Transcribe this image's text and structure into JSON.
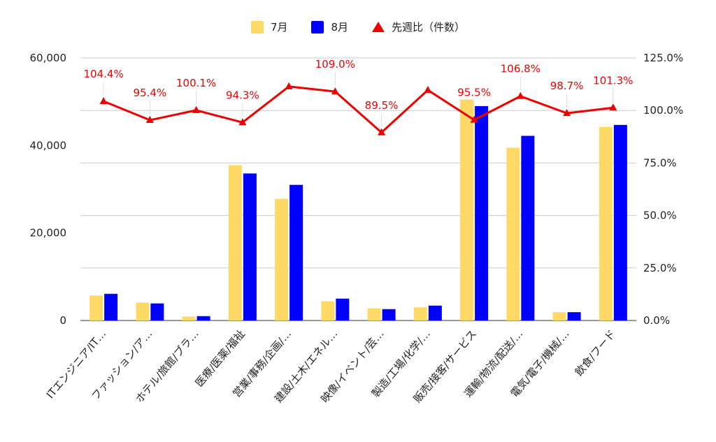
{
  "chart_data": {
    "type": "bar",
    "categories": [
      "ITエンジニア/IT…",
      "ファッション/ア…",
      "ホテル/旅館/ブラ…",
      "医療/医薬/福祉",
      "営業/事務/企画/…",
      "建設/土木/エネル…",
      "映像/イベント/芸…",
      "製造/工場/化学/…",
      "販売/接客/サービス",
      "運輸/物流/配送/…",
      "電気/電子/機械/…",
      "飲食/フード"
    ],
    "series": [
      {
        "name": "7月",
        "type": "bar",
        "axis": "left",
        "color": "#ffd966",
        "values": [
          5700,
          4100,
          900,
          35500,
          27800,
          4400,
          2800,
          3000,
          50500,
          39500,
          1900,
          44200
        ]
      },
      {
        "name": "8月",
        "type": "bar",
        "axis": "left",
        "color": "#0000ff",
        "values": [
          6100,
          3900,
          1000,
          33600,
          31000,
          5000,
          2600,
          3400,
          49000,
          42200,
          1900,
          44700
        ]
      },
      {
        "name": "先週比（件数）",
        "type": "line",
        "axis": "right",
        "color": "#ee0000",
        "values": [
          104.4,
          95.4,
          100.1,
          94.3,
          111.4,
          109.0,
          89.5,
          109.7,
          95.5,
          106.8,
          98.7,
          101.3
        ],
        "labels": [
          "104.4%",
          "95.4%",
          "100.1%",
          "94.3%",
          "",
          "109.0%",
          "89.5%",
          "",
          "95.5%",
          "106.8%",
          "98.7%",
          "101.3%"
        ]
      }
    ],
    "y_left": {
      "min": 0,
      "max": 60000,
      "ticks": [
        "0",
        "20,000",
        "40,000",
        "60,000"
      ],
      "tick_values": [
        0,
        20000,
        40000,
        60000
      ]
    },
    "y_right": {
      "min": 0,
      "max": 125,
      "ticks": [
        "0.0%",
        "25.0%",
        "50.0%",
        "75.0%",
        "100.0%",
        "125.0%"
      ],
      "tick_values": [
        0,
        25,
        50,
        75,
        100,
        125
      ]
    },
    "grid": true,
    "legend_position": "top"
  }
}
